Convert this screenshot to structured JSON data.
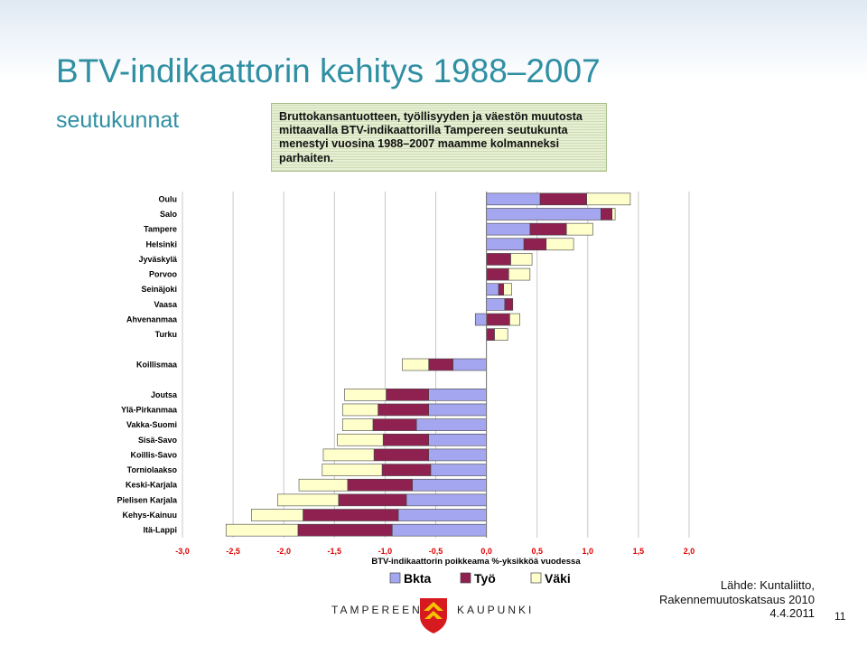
{
  "title": "BTV-indikaattorin kehitys 1988–2007",
  "subtitle": "seutukunnat",
  "caption": "Bruttokansantuotteen, työllisyyden ja väestön muutosta mittaavalla BTV-indikaattorilla Tampereen seutukunta menestyi vuosina 1988–2007 maamme kolmanneksi parhaiten.",
  "footer": {
    "city_left": "TAMPEREEN",
    "city_right": "KAUPUNKI",
    "source_line1": "Lähde: Kuntaliitto,",
    "source_line2": "Rakennemuutoskatsaus 2010",
    "date": "4.4.2011",
    "page_number": "11"
  },
  "colors": {
    "bkta": "#a4a7f0",
    "tyo": "#8f2150",
    "vaki": "#ffffcc",
    "title": "#2f8fa3",
    "tick_labels": "#e00000"
  },
  "chart_data": {
    "type": "bar",
    "orientation": "horizontal",
    "stacked": true,
    "xlabel": "BTV-indikaattorin poikkeama %-yksikköä vuodessa",
    "xlim": [
      -3.0,
      2.0
    ],
    "x_ticks": [
      "-3,0",
      "-2,5",
      "-2,0",
      "-1,5",
      "-1,0",
      "-0,5",
      "0,0",
      "0,5",
      "1,0",
      "1,5",
      "2,0"
    ],
    "grid": "vertical",
    "legend_position": "bottom",
    "categories": [
      "Oulu",
      "Salo",
      "Tampere",
      "Helsinki",
      "Jyväskylä",
      "Porvoo",
      "Seinäjoki",
      "Vaasa",
      "Ahvenanmaa",
      "Turku",
      "",
      "Koillismaa",
      "",
      "Joutsa",
      "Ylä-Pirkanmaa",
      "Vakka-Suomi",
      "Sisä-Savo",
      "Koillis-Savo",
      "Torniolaakso",
      "Keski-Karjala",
      "Pielisen Karjala",
      "Kehys-Kainuu",
      "Itä-Lappi"
    ],
    "series": [
      {
        "name": "Bkta",
        "values": [
          0.53,
          1.13,
          0.43,
          0.37,
          0.0,
          0.0,
          0.12,
          0.18,
          -0.11,
          0.0,
          null,
          -0.33,
          null,
          -0.57,
          -0.57,
          -0.69,
          -0.57,
          -0.57,
          -0.55,
          -0.73,
          -0.79,
          -0.87,
          -0.93
        ]
      },
      {
        "name": "Työ",
        "values": [
          0.46,
          0.11,
          0.36,
          0.22,
          0.24,
          0.22,
          0.05,
          0.08,
          0.23,
          0.08,
          null,
          -0.24,
          null,
          -0.42,
          -0.5,
          -0.43,
          -0.45,
          -0.54,
          -0.48,
          -0.64,
          -0.67,
          -0.94,
          -0.93
        ]
      },
      {
        "name": "Väki",
        "values": [
          0.43,
          0.03,
          0.26,
          0.27,
          0.21,
          0.21,
          0.08,
          0.0,
          0.1,
          0.13,
          null,
          -0.26,
          null,
          -0.41,
          -0.35,
          -0.3,
          -0.45,
          -0.5,
          -0.59,
          -0.48,
          -0.6,
          -0.51,
          -0.71
        ]
      }
    ]
  }
}
